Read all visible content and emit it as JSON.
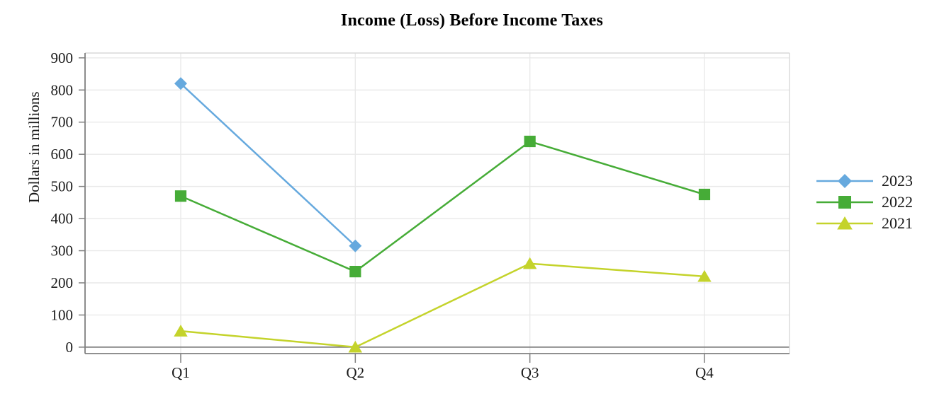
{
  "chart_data": {
    "type": "line",
    "title": "Income (Loss) Before Income Taxes",
    "xlabel": "",
    "ylabel": "Dollars in millions",
    "categories": [
      "Q1",
      "Q2",
      "Q3",
      "Q4"
    ],
    "series": [
      {
        "name": "2023",
        "color": "#66A9DE",
        "marker": "diamond",
        "values": [
          820,
          315,
          null,
          null
        ]
      },
      {
        "name": "2022",
        "color": "#46AC37",
        "marker": "square",
        "values": [
          470,
          235,
          640,
          475
        ]
      },
      {
        "name": "2021",
        "color": "#C4D32B",
        "marker": "triangle",
        "values": [
          50,
          0,
          260,
          220
        ]
      }
    ],
    "y_ticks": [
      0,
      100,
      200,
      300,
      400,
      500,
      600,
      700,
      800,
      900
    ],
    "ylim": [
      -20,
      915
    ],
    "grid": true,
    "legend_position": "right",
    "axis_color": "#808080",
    "gridline_color": "#E9E9E9",
    "border_color": "#D9D9D9",
    "text_color": "#1A1A1A"
  }
}
